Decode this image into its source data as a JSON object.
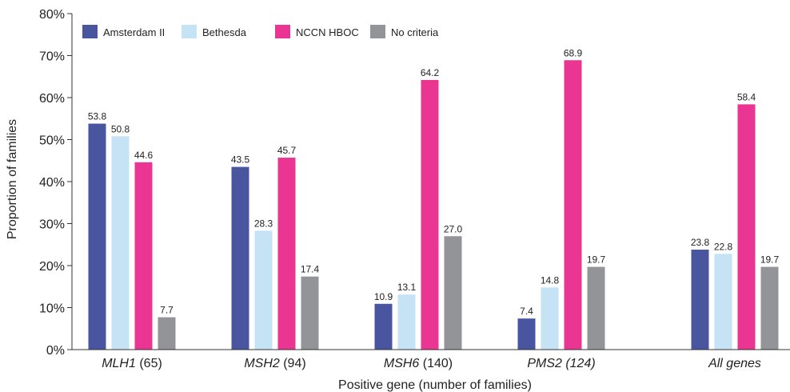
{
  "chart_data": {
    "type": "bar",
    "xlabel": "Positive gene (number of families)",
    "ylabel": "Proportion of families",
    "ylim": [
      0,
      80
    ],
    "yticks": [
      "0%",
      "10%",
      "20%",
      "30%",
      "40%",
      "50%",
      "60%",
      "70%",
      "80%"
    ],
    "legend_position": "top-left",
    "categories": [
      {
        "gene": "MLH1",
        "count": " (65)"
      },
      {
        "gene": "MSH2",
        "count": " (94)"
      },
      {
        "gene": "MSH6",
        "count": " (140)"
      },
      {
        "gene": "PMS2 (124)",
        "count": ""
      },
      {
        "gene": "All genes",
        "count": ""
      }
    ],
    "series": [
      {
        "name": "Amsterdam II",
        "color": "#4a55a0",
        "values": [
          53.8,
          43.5,
          10.9,
          7.4,
          23.8
        ],
        "labels": [
          "53.8",
          "43.5",
          "10.9",
          "7.4",
          "23.8"
        ]
      },
      {
        "name": "Bethesda",
        "color": "#c6e2f5",
        "values": [
          50.8,
          28.3,
          13.1,
          14.8,
          22.8
        ],
        "labels": [
          "50.8",
          "28.3",
          "13.1",
          "14.8",
          "22.8"
        ]
      },
      {
        "name": "NCCN HBOC",
        "color": "#ea3592",
        "values": [
          44.6,
          45.7,
          64.2,
          68.9,
          58.4
        ],
        "labels": [
          "44.6",
          "45.7",
          "64.2",
          "68.9",
          "58.4"
        ]
      },
      {
        "name": "No criteria",
        "color": "#939497",
        "values": [
          7.7,
          17.4,
          27.0,
          19.7,
          19.7
        ],
        "labels": [
          "7.7",
          "17.4",
          "27.0",
          "19.7",
          "19.7"
        ]
      }
    ]
  }
}
